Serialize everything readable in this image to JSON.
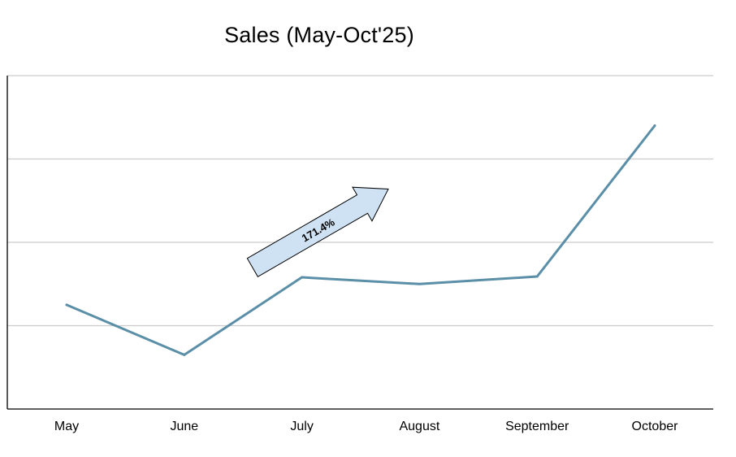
{
  "chart_data": {
    "type": "line",
    "title": "Sales (May-Oct'25)",
    "xlabel": "",
    "ylabel": "",
    "categories": [
      "May",
      "June",
      "July",
      "August",
      "September",
      "October"
    ],
    "series": [
      {
        "values": [
          1.25,
          0.65,
          1.58,
          1.5,
          1.59,
          3.4
        ]
      }
    ],
    "ylim": [
      0,
      4
    ],
    "y_ticks_labeled": false,
    "grid": true,
    "line_color": "#5b8fa8",
    "annotation": {
      "text": "171.4%",
      "shape": "arrow",
      "fill": "#cfe2f3",
      "stroke": "#000000"
    }
  }
}
